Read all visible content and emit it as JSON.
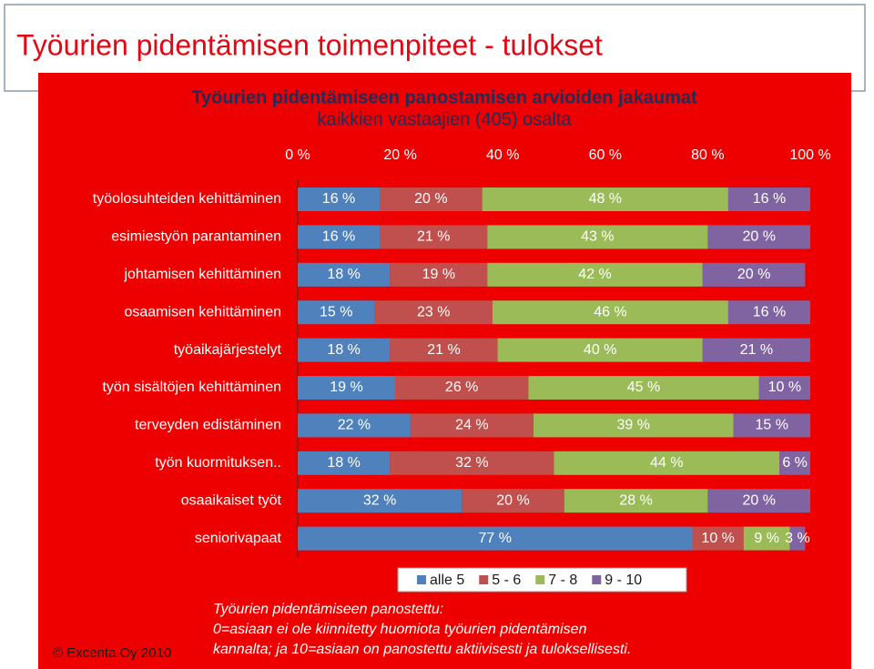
{
  "header": {
    "title": "Työurien pidentämisen toimenpiteet - tulokset"
  },
  "chart_data": {
    "type": "stacked-bar-horizontal",
    "title": "Työurien pidentämiseen panostamisen arvioiden jakaumat",
    "subtitle": "kaikkien vastaajien (405) osalta",
    "categories": [
      "työolosuhteiden kehittäminen",
      "esimiestyön parantaminen",
      "johtamisen kehittäminen",
      "osaamisen kehittäminen",
      "työaikajärjestelyt",
      "työn sisältöjen kehittäminen",
      "terveyden edistäminen",
      "työn kuormituksen..",
      "osaaikaiset työt",
      "seniorivapaat"
    ],
    "series": [
      {
        "name": "alle 5",
        "color": "#4f81bd",
        "values": [
          16,
          16,
          18,
          15,
          18,
          19,
          22,
          18,
          32,
          77
        ],
        "value_labels": [
          "16 %",
          "16 %",
          "18 %",
          "15 %",
          "18 %",
          "19 %",
          "22 %",
          "18 %",
          "32 %",
          "77 %"
        ]
      },
      {
        "name": "5 - 6",
        "color": "#c0504d",
        "values": [
          20,
          21,
          19,
          23,
          21,
          26,
          24,
          32,
          20,
          10
        ],
        "value_labels": [
          "20 %",
          "21 %",
          "19 %",
          "23 %",
          "21 %",
          "26 %",
          "24 %",
          "32 %",
          "20 %",
          "10 %"
        ]
      },
      {
        "name": "7 - 8",
        "color": "#9bbb59",
        "values": [
          48,
          43,
          42,
          46,
          40,
          45,
          39,
          44,
          28,
          9
        ],
        "value_labels": [
          "48 %",
          "43 %",
          "42 %",
          "46 %",
          "40 %",
          "45 %",
          "39 %",
          "44 %",
          "28 %",
          "9 %"
        ]
      },
      {
        "name": "9 - 10",
        "color": "#8064a2",
        "values": [
          16,
          20,
          20,
          16,
          21,
          10,
          15,
          6,
          20,
          3
        ],
        "value_labels": [
          "16 %",
          "20 %",
          "20 %",
          "16 %",
          "21 %",
          "10 %",
          "15 %",
          "6 %",
          "20 %",
          "3 %"
        ]
      }
    ],
    "xlim": [
      0,
      100
    ],
    "xticks": [
      {
        "value": 0,
        "label": "0 %"
      },
      {
        "value": 20,
        "label": "20 %"
      },
      {
        "value": 40,
        "label": "40 %"
      },
      {
        "value": 60,
        "label": "60 %"
      },
      {
        "value": 80,
        "label": "80 %"
      },
      {
        "value": 100,
        "label": "100 %"
      }
    ]
  },
  "footnote": [
    "Työurien pidentämiseen panostettu:",
    "0=asiaan ei ole kiinnitetty huomiota työurien pidentämisen",
    "kannalta; ja 10=asiaan on panostettu aktiivisesti ja tuloksellisesti."
  ],
  "copyright": "© Excenta Oy 2010"
}
